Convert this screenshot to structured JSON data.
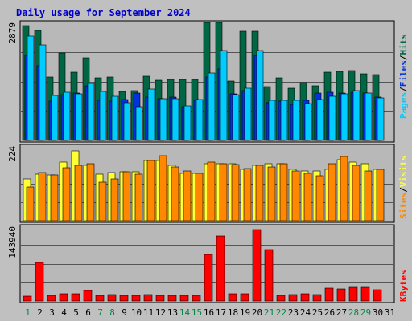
{
  "colors": {
    "background": "#c0c0c0",
    "plot_bg": "#b8b8b8",
    "title": "#0000cc",
    "hits": "#006644",
    "files": "#0033dd",
    "pages": "#00ccff",
    "visits": "#ffff33",
    "sites": "#ff8800",
    "kbytes": "#ff0000",
    "weekday_label": "#000000",
    "weekend_label": "#008844"
  },
  "chart_data": {
    "type": "bar",
    "title": "Daily usage for September 2024",
    "days": [
      "1",
      "2",
      "3",
      "4",
      "5",
      "6",
      "7",
      "8",
      "9",
      "10",
      "11",
      "12",
      "13",
      "14",
      "15",
      "16",
      "17",
      "18",
      "19",
      "20",
      "21",
      "22",
      "23",
      "24",
      "25",
      "26",
      "27",
      "28",
      "29",
      "30",
      "31"
    ],
    "weekend_days": [
      "1",
      "7",
      "8",
      "14",
      "15",
      "21",
      "22",
      "28",
      "29"
    ],
    "panels": [
      {
        "name": "hits_files_pages",
        "ymax_label": "2879",
        "ylim": [
          0,
          2879
        ],
        "axis_labels": [
          {
            "text": "Pages",
            "color": "#00ccff"
          },
          {
            "text": "Files",
            "color": "#0033dd"
          },
          {
            "text": "Hits",
            "color": "#006644"
          }
        ],
        "series": [
          {
            "name": "Hits",
            "values": [
              2810,
              2680,
              1550,
              2140,
              1660,
              2020,
              1530,
              1550,
              1200,
              1220,
              1570,
              1470,
              1490,
              1480,
              1490,
              2880,
              2880,
              1450,
              2660,
              2660,
              1310,
              1530,
              1280,
              1410,
              1330,
              1670,
              1680,
              1700,
              1630,
              1600,
              0
            ]
          },
          {
            "name": "Files",
            "values": [
              2080,
              1830,
              960,
              1120,
              1150,
              1340,
              970,
              960,
              1000,
              1150,
              1060,
              1010,
              1050,
              830,
              980,
              1550,
              1740,
              1140,
              1210,
              2080,
              920,
              950,
              880,
              970,
              1160,
              1180,
              1160,
              1170,
              1150,
              1060,
              0
            ]
          },
          {
            "name": "Pages",
            "values": [
              2550,
              2330,
              1100,
              1180,
              1130,
              1390,
              1200,
              1070,
              930,
              830,
              1250,
              1010,
              1020,
              840,
              990,
              1650,
              2200,
              1110,
              1280,
              2190,
              980,
              980,
              970,
              900,
              990,
              1080,
              1130,
              1220,
              1160,
              1040,
              0
            ]
          }
        ]
      },
      {
        "name": "visits_sites",
        "ymax_label": "224",
        "ylim": [
          0,
          224
        ],
        "axis_labels": [
          {
            "text": "Sites",
            "color": "#ff8800"
          },
          {
            "text": "Visits",
            "color": "#ffff33"
          }
        ],
        "series": [
          {
            "name": "Visits",
            "values": [
              125,
              140,
              138,
              175,
              210,
              165,
              140,
              145,
              146,
              146,
              180,
              180,
              165,
              142,
              142,
              172,
              172,
              170,
              155,
              166,
              170,
              170,
              154,
              150,
              150,
              155,
              184,
              175,
              172,
              155,
              0
            ]
          },
          {
            "name": "Sites",
            "values": [
              100,
              145,
              138,
              158,
              165,
              170,
              116,
              125,
              146,
              140,
              180,
              194,
              162,
              150,
              142,
              175,
              172,
              168,
              156,
              166,
              162,
              170,
              150,
              143,
              136,
              171,
              193,
              166,
              150,
              153,
              0
            ]
          }
        ]
      },
      {
        "name": "kbytes",
        "ymax_label": "143940",
        "ylim": [
          0,
          143940
        ],
        "axis_labels": [
          {
            "text": "KBytes",
            "color": "#ff0000"
          }
        ],
        "series": [
          {
            "name": "KBytes",
            "values": [
              9300,
              74000,
              11400,
              13200,
              14700,
              19800,
              10200,
              12300,
              10200,
              11400,
              12000,
              10800,
              11400,
              10200,
              10200,
              89000,
              126000,
              13200,
              13200,
              138000,
              99000,
              10200,
              12000,
              14100,
              12000,
              24000,
              22800,
              25800,
              25800,
              21000,
              0
            ]
          }
        ]
      }
    ]
  }
}
